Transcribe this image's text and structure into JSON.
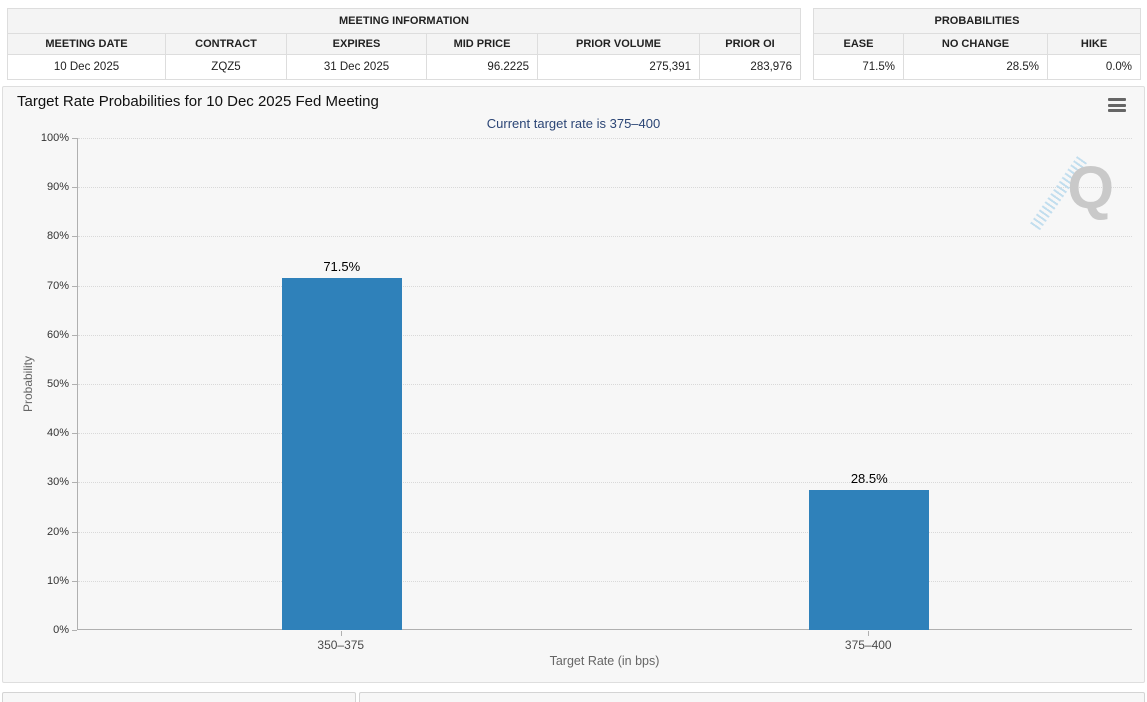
{
  "meeting_information": {
    "title": "MEETING INFORMATION",
    "headers": [
      "MEETING DATE",
      "CONTRACT",
      "EXPIRES",
      "MID PRICE",
      "PRIOR VOLUME",
      "PRIOR OI"
    ],
    "row": [
      "10 Dec 2025",
      "ZQZ5",
      "31 Dec 2025",
      "96.2225",
      "275,391",
      "283,976"
    ]
  },
  "probabilities": {
    "title": "PROBABILITIES",
    "headers": [
      "EASE",
      "NO CHANGE",
      "HIKE"
    ],
    "row": [
      "71.5%",
      "28.5%",
      "0.0%"
    ]
  },
  "chart_data": {
    "type": "bar",
    "title": "Target Rate Probabilities for 10 Dec 2025 Fed Meeting",
    "subtitle": "Current target rate is 375–400",
    "categories": [
      "350–375",
      "375–400"
    ],
    "values": [
      71.5,
      28.5
    ],
    "data_labels": [
      "71.5%",
      "28.5%"
    ],
    "xlabel": "Target Rate (in bps)",
    "ylabel": "Probability",
    "ylim": [
      0,
      100
    ],
    "ytick_step": 10,
    "ytick_suffix": "%",
    "grid": "dotted-horizontal",
    "legend": "none",
    "watermark_letter": "Q"
  },
  "icons": {
    "menu": "hamburger-icon",
    "watermark": "quikstrike-q-logo"
  },
  "colors": {
    "bar": "#2f81ba",
    "subtitle_text": "#2b4575",
    "panel_background": "#f7f7f7",
    "axis_line": "#b0b0b0",
    "gridline": "#d9d9d9",
    "table_header_background": "#f4f4f4"
  }
}
